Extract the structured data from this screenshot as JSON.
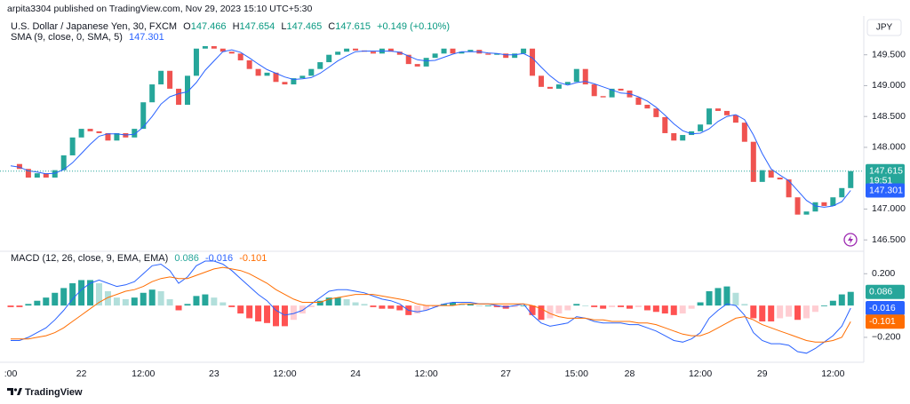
{
  "header": {
    "published": "arpita3304 published on TradingView.com, Nov 29, 2023 15:10 UTC+5:30",
    "currency": "JPY",
    "brand": "TradingView"
  },
  "chart_data": [
    {
      "type": "candlestick",
      "title": "U.S. Dollar / Japanese Yen, 30, FXCM",
      "quote": [
        {
          "label": "O",
          "value": "147.466"
        },
        {
          "label": "H",
          "value": "147.654"
        },
        {
          "label": "L",
          "value": "147.465"
        },
        {
          "label": "C",
          "value": "147.615"
        }
      ],
      "change": "+0.149 (+0.10%)",
      "countdown": "19:51",
      "categories": [
        ":00",
        null,
        null,
        null,
        null,
        null,
        null,
        null,
        "22",
        null,
        null,
        null,
        null,
        null,
        null,
        "12:00",
        null,
        null,
        null,
        null,
        null,
        null,
        null,
        "23",
        null,
        null,
        null,
        null,
        null,
        null,
        null,
        "12:00",
        null,
        null,
        null,
        null,
        null,
        null,
        null,
        "24",
        null,
        null,
        null,
        null,
        null,
        null,
        null,
        "12:00",
        null,
        null,
        null,
        null,
        null,
        null,
        null,
        null,
        "27",
        null,
        null,
        null,
        null,
        null,
        null,
        null,
        "15:00",
        null,
        null,
        null,
        null,
        null,
        "28",
        null,
        null,
        null,
        null,
        null,
        null,
        null,
        "12:00",
        null,
        null,
        null,
        null,
        null,
        null,
        "29",
        null,
        null,
        null,
        null,
        null,
        null,
        null,
        "12:00",
        null,
        null
      ],
      "close": [
        147.73,
        147.65,
        147.51,
        147.58,
        147.51,
        147.63,
        147.87,
        148.16,
        148.3,
        148.26,
        148.23,
        148.11,
        148.23,
        148.16,
        148.3,
        148.73,
        149.02,
        149.24,
        148.95,
        148.69,
        149.16,
        149.6,
        149.64,
        149.6,
        149.55,
        149.52,
        149.41,
        149.27,
        149.16,
        149.21,
        149.06,
        149.02,
        149.12,
        149.16,
        149.27,
        149.38,
        149.5,
        149.55,
        149.6,
        149.57,
        149.55,
        149.52,
        149.6,
        149.55,
        149.5,
        149.35,
        149.31,
        149.45,
        149.52,
        149.6,
        149.52,
        149.55,
        149.58,
        149.52,
        149.5,
        149.52,
        149.45,
        149.52,
        149.6,
        149.16,
        148.98,
        148.95,
        149.02,
        149.06,
        149.27,
        149.02,
        148.83,
        148.81,
        148.95,
        148.92,
        148.81,
        148.69,
        148.63,
        148.49,
        148.23,
        148.11,
        148.2,
        148.26,
        148.37,
        148.63,
        148.59,
        148.52,
        148.4,
        148.09,
        147.44,
        147.63,
        147.51,
        147.48,
        147.19,
        146.91,
        146.96,
        147.11,
        147.05,
        147.19,
        147.34,
        147.615
      ],
      "colors": {
        "up": "#26a69a",
        "down": "#ef5350"
      },
      "overlays": [
        {
          "name": "SMA (9, close, 0, SMA, 5)",
          "color": "#2962ff",
          "values": [
            147.7,
            147.68,
            147.62,
            147.6,
            147.57,
            147.58,
            147.64,
            147.75,
            147.9,
            148.05,
            148.18,
            148.22,
            148.22,
            148.2,
            148.21,
            148.33,
            148.5,
            148.7,
            148.82,
            148.87,
            148.9,
            149.05,
            149.25,
            149.4,
            149.55,
            149.58,
            149.54,
            149.45,
            149.35,
            149.26,
            149.2,
            149.14,
            149.1,
            149.11,
            149.13,
            149.2,
            149.3,
            149.4,
            149.48,
            149.55,
            149.56,
            149.56,
            149.56,
            149.56,
            149.54,
            149.48,
            149.42,
            149.4,
            149.41,
            149.46,
            149.51,
            149.55,
            149.55,
            149.55,
            149.53,
            149.52,
            149.5,
            149.5,
            149.52,
            149.45,
            149.3,
            149.16,
            149.05,
            149.01,
            149.05,
            149.07,
            149.03,
            148.98,
            148.93,
            148.88,
            148.87,
            148.82,
            148.75,
            148.65,
            148.52,
            148.38,
            148.27,
            148.22,
            148.23,
            148.3,
            148.42,
            148.5,
            148.53,
            148.45,
            148.2,
            147.9,
            147.65,
            147.55,
            147.46,
            147.3,
            147.14,
            147.05,
            147.03,
            147.05,
            147.12,
            147.301
          ]
        }
      ],
      "ylim": [
        146.33,
        150.1
      ],
      "yticks": [
        {
          "value": 149.5,
          "label": "149.500"
        },
        {
          "value": 149,
          "label": "149.000"
        },
        {
          "value": 148.5,
          "label": "148.500"
        },
        {
          "value": 148,
          "label": "148.000"
        },
        {
          "value": 147,
          "label": "147.000"
        },
        {
          "value": 146.5,
          "label": "146.500"
        }
      ]
    },
    {
      "type": "macd",
      "title": "MACD (12, 26, close, 9, EMA, EMA)",
      "series": [
        {
          "kind": "histogram",
          "colors": [
            "#26a69a",
            "#b2dfdb",
            "#ff5252",
            "#ffcdd2"
          ],
          "values": [
            -0.01,
            -0.01,
            0.01,
            0.03,
            0.05,
            0.08,
            0.11,
            0.14,
            0.16,
            0.16,
            0.14,
            0.09,
            0.05,
            0.04,
            0.05,
            0.08,
            0.1,
            0.09,
            0.04,
            -0.03,
            0.01,
            0.06,
            0.07,
            0.05,
            0.02,
            -0.01,
            -0.05,
            -0.08,
            -0.1,
            -0.11,
            -0.13,
            -0.13,
            -0.09,
            -0.05,
            -0.01,
            0.03,
            0.05,
            0.05,
            0.04,
            0.02,
            0.01,
            -0.01,
            -0.02,
            -0.02,
            -0.03,
            -0.06,
            -0.05,
            -0.03,
            -0.01,
            0.01,
            0.02,
            0.01,
            0.01,
            0.0,
            0.0,
            -0.01,
            -0.02,
            -0.01,
            0.0,
            -0.06,
            -0.09,
            -0.08,
            -0.05,
            -0.03,
            0.01,
            0.0,
            -0.01,
            -0.02,
            -0.01,
            -0.01,
            -0.02,
            -0.01,
            -0.03,
            -0.04,
            -0.05,
            -0.06,
            -0.05,
            -0.02,
            0.02,
            0.09,
            0.11,
            0.12,
            0.08,
            0.01,
            -0.08,
            -0.1,
            -0.1,
            -0.08,
            -0.07,
            -0.09,
            -0.08,
            -0.04,
            0.0,
            0.03,
            0.07,
            0.086
          ]
        },
        {
          "kind": "line",
          "color": "#2962ff",
          "values": [
            -0.22,
            -0.22,
            -0.2,
            -0.17,
            -0.14,
            -0.09,
            -0.03,
            0.04,
            0.1,
            0.14,
            0.16,
            0.14,
            0.12,
            0.13,
            0.15,
            0.2,
            0.25,
            0.26,
            0.22,
            0.14,
            0.18,
            0.25,
            0.28,
            0.28,
            0.26,
            0.22,
            0.17,
            0.12,
            0.07,
            0.03,
            -0.03,
            -0.06,
            -0.05,
            -0.03,
            0.01,
            0.05,
            0.09,
            0.1,
            0.1,
            0.09,
            0.08,
            0.06,
            0.04,
            0.03,
            0.01,
            -0.03,
            -0.04,
            -0.03,
            -0.01,
            0.01,
            0.02,
            0.02,
            0.02,
            0.01,
            0.01,
            0.0,
            -0.01,
            0.0,
            0.01,
            -0.06,
            -0.11,
            -0.13,
            -0.12,
            -0.11,
            -0.07,
            -0.08,
            -0.1,
            -0.11,
            -0.11,
            -0.11,
            -0.12,
            -0.12,
            -0.14,
            -0.16,
            -0.19,
            -0.22,
            -0.23,
            -0.21,
            -0.17,
            -0.08,
            -0.03,
            0.01,
            0.0,
            -0.06,
            -0.17,
            -0.22,
            -0.24,
            -0.24,
            -0.25,
            -0.29,
            -0.3,
            -0.27,
            -0.23,
            -0.19,
            -0.13,
            -0.016
          ]
        },
        {
          "kind": "line",
          "color": "#ff6d00",
          "values": [
            -0.21,
            -0.21,
            -0.21,
            -0.2,
            -0.19,
            -0.17,
            -0.14,
            -0.1,
            -0.06,
            -0.02,
            0.02,
            0.05,
            0.07,
            0.09,
            0.1,
            0.12,
            0.15,
            0.17,
            0.18,
            0.17,
            0.17,
            0.19,
            0.21,
            0.23,
            0.24,
            0.23,
            0.22,
            0.2,
            0.17,
            0.14,
            0.1,
            0.07,
            0.04,
            0.02,
            0.02,
            0.02,
            0.04,
            0.05,
            0.06,
            0.07,
            0.07,
            0.07,
            0.06,
            0.05,
            0.04,
            0.03,
            0.01,
            0.0,
            0.0,
            0.0,
            0.0,
            0.01,
            0.01,
            0.01,
            0.01,
            0.01,
            0.01,
            0.01,
            0.01,
            0.0,
            -0.02,
            -0.05,
            -0.07,
            -0.08,
            -0.08,
            -0.08,
            -0.09,
            -0.09,
            -0.1,
            -0.1,
            -0.1,
            -0.11,
            -0.11,
            -0.12,
            -0.14,
            -0.16,
            -0.18,
            -0.19,
            -0.19,
            -0.17,
            -0.14,
            -0.11,
            -0.08,
            -0.07,
            -0.09,
            -0.12,
            -0.14,
            -0.16,
            -0.18,
            -0.2,
            -0.22,
            -0.23,
            -0.23,
            -0.22,
            -0.2,
            -0.101
          ]
        }
      ],
      "ylim": [
        -0.34,
        0.33
      ],
      "yticks": [
        {
          "value": 0.2,
          "label": "0.200"
        },
        {
          "value": -0.2,
          "label": "−0.200"
        }
      ]
    }
  ]
}
